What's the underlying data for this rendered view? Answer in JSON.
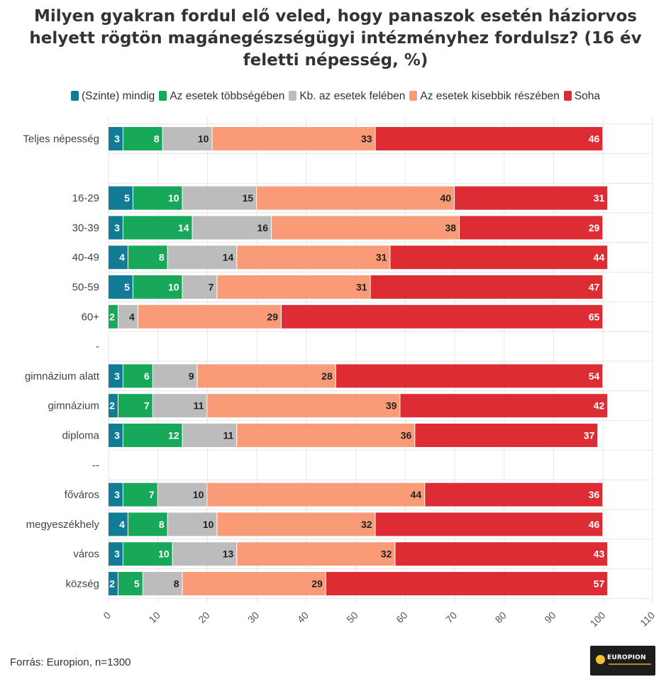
{
  "title": "Milyen gyakran fordul elő veled, hogy panaszok esetén háziorvos helyett rögtön magánegészségügyi intézményhez fordulsz? (16 év feletti népesség, %)",
  "source": "Forrás: Europion, n=1300",
  "logo_text": "EUROPION",
  "chart_data": {
    "type": "bar",
    "orientation": "horizontal",
    "stacked": true,
    "categories": [
      "Teljes népesség",
      "",
      "16-29",
      "30-39",
      "40-49",
      "50-59",
      "60+",
      "-",
      "gimnázium alatt",
      "gimnázium",
      "diploma",
      "--",
      "főváros",
      "megyeszékhely",
      "város",
      "község"
    ],
    "series": [
      {
        "name": "(Szinte) mindig",
        "color": "#127c96",
        "values": [
          3,
          null,
          5,
          3,
          4,
          5,
          null,
          null,
          3,
          2,
          3,
          null,
          3,
          4,
          3,
          2
        ]
      },
      {
        "name": "Az esetek többségében",
        "color": "#17a85a",
        "values": [
          8,
          null,
          10,
          14,
          8,
          10,
          2,
          null,
          6,
          7,
          12,
          null,
          7,
          8,
          10,
          5
        ]
      },
      {
        "name": "Kb. az esetek felében",
        "color": "#bcbcbc",
        "values": [
          10,
          null,
          15,
          16,
          14,
          7,
          4,
          null,
          9,
          11,
          11,
          null,
          10,
          10,
          13,
          8
        ]
      },
      {
        "name": "Az esetek kisebbik részében",
        "color": "#f99b77",
        "values": [
          33,
          null,
          40,
          38,
          31,
          31,
          29,
          null,
          28,
          39,
          36,
          null,
          44,
          32,
          32,
          29
        ]
      },
      {
        "name": "Soha",
        "color": "#dd2c34",
        "values": [
          46,
          null,
          31,
          29,
          44,
          47,
          65,
          null,
          54,
          42,
          37,
          null,
          36,
          46,
          43,
          57
        ]
      }
    ],
    "xlim": [
      0,
      110
    ],
    "x_ticks": [
      0,
      10,
      20,
      30,
      40,
      50,
      60,
      70,
      80,
      90,
      100,
      110
    ],
    "grid": true,
    "legend_position": "top"
  }
}
